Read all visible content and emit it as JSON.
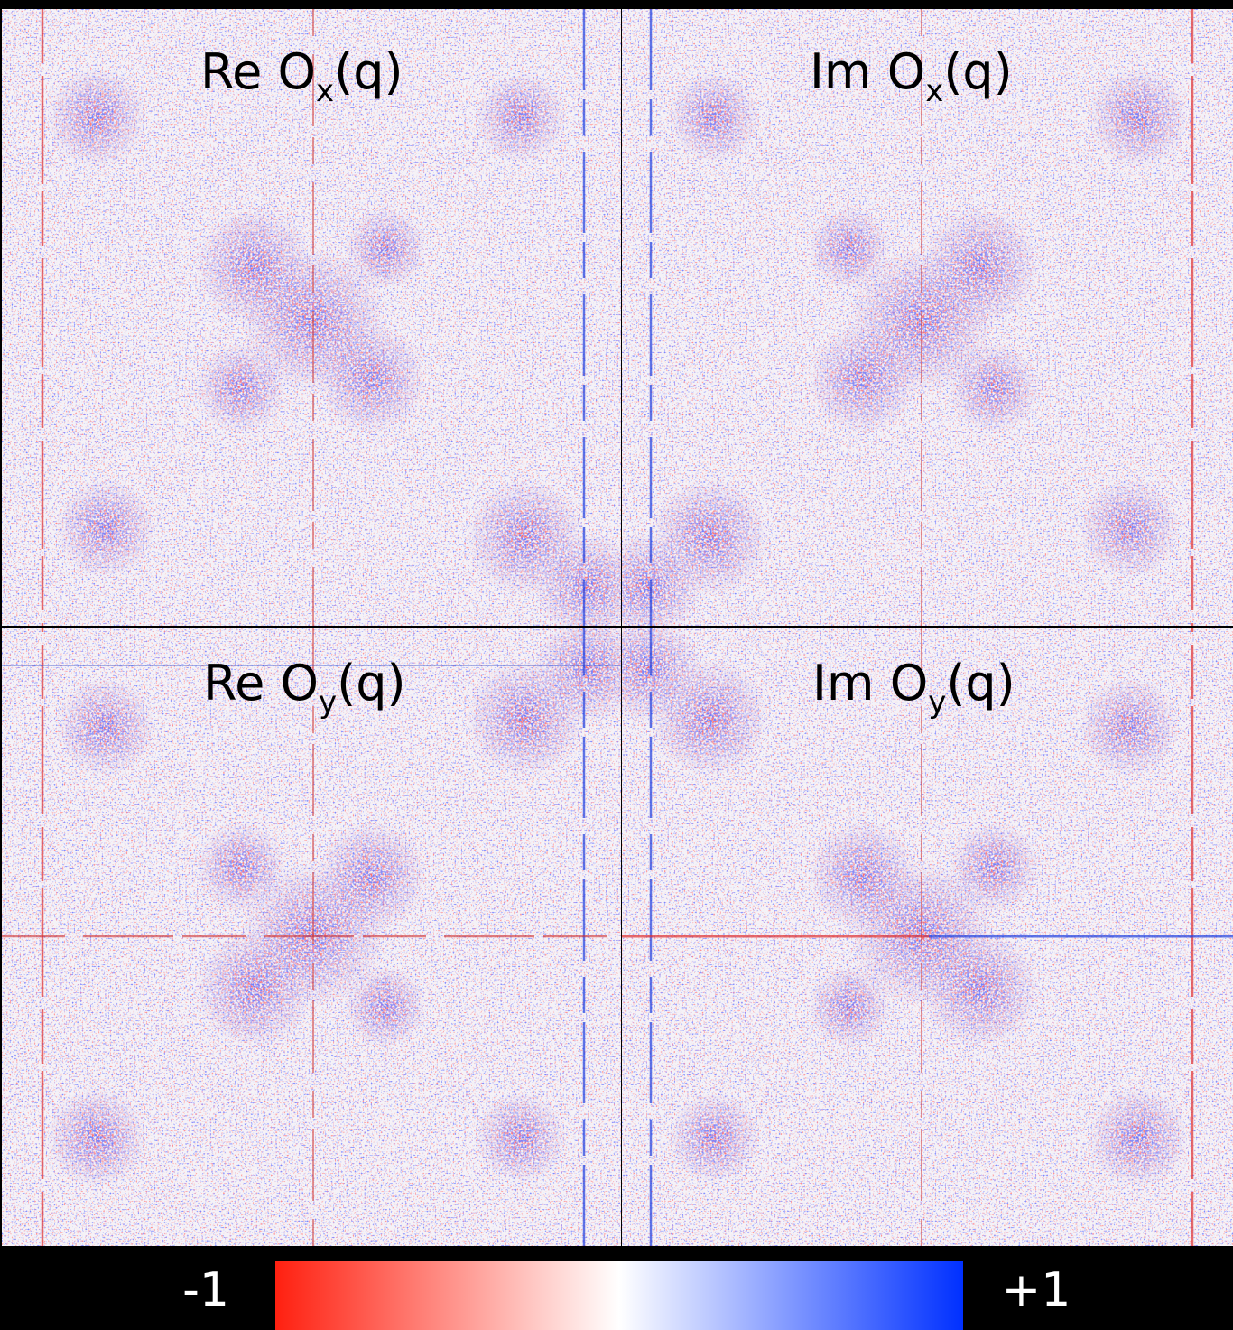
{
  "panels": [
    {
      "title": {
        "lead": "Re O",
        "sub": "x",
        "tail": "(q)"
      }
    },
    {
      "title": {
        "lead": "Im O",
        "sub": "x",
        "tail": "(q)"
      }
    },
    {
      "title": {
        "lead": "Re O",
        "sub": "y",
        "tail": "(q)"
      }
    },
    {
      "title": {
        "lead": "Im O",
        "sub": "y",
        "tail": "(q)"
      }
    }
  ],
  "colorbar": {
    "min_label": "-1",
    "max_label": "+1"
  }
}
